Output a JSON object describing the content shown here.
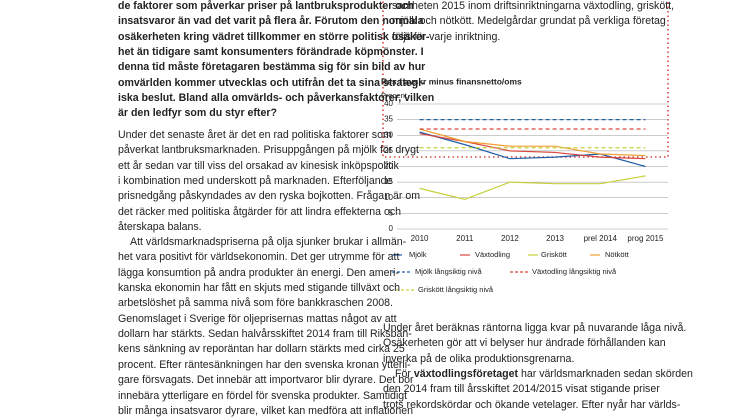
{
  "left_column": {
    "intro": [
      "de faktorer som påverkar priser på lantbruksprodukter och",
      "insatsvaror än vad det varit på flera år. Förutom den normala",
      "osäkerheten kring vädret tillkommer en större politisk osäker-",
      "het än tidigare samt konsumenters förändrade köpmönster. I",
      "denna tid måste företagaren bestämma sig för sin bild av hur",
      "omvärlden kommer utvecklas och utifrån det ta sina strategi-",
      "iska beslut. Bland alla omvärlds- och påverkansfaktorer, vilken",
      "är den ledfyr som du styr efter?"
    ],
    "paragraphs": [
      [
        "Under det senaste året är det en rad politiska faktorer som",
        "påverkat lantbruksmarknaden. Prisuppgången på mjölk för drygt",
        "ett år sedan var till viss del orsakad av kinesisk inköpspolitik",
        "i kombination med underskott på marknaden. Efterföljande",
        "prisnedgång påskyndades av den ryska bojkotten. Frågan är om",
        "det räcker med politiska åtgärder för att lindra effekterna och",
        "återskapa balans."
      ],
      [
        "Att världsmarknadspriserna på olja sjunker brukar i allmän-",
        "het vara positivt för världsekonomin. Det ger utrymme för att",
        "lägga konsumtion på andra produkter än energi. Den ameri-",
        "kanska ekonomin har fått en skjuts med stigande tillväxt och",
        "arbetslöshet på samma nivå som före bankkraschen 2008.",
        "Genomslaget i Sverige för oljeprisernas mattas något av att",
        "dollarn har stärkts. Sedan halvårsskiftet 2014 fram till Riksban-",
        "kens sänkning av reporäntan har dollarn stärkts med cirka 25",
        "procent. Efter räntesänkningen har den svenska kronan ytterli-",
        "gare försvagats. Det innebär att importvaror blir dyrare. Det bör",
        "innebära ytterligare en fördel för svenska produkter. Samtidigt",
        "blir många insatsvaror dyrare, vilket kan medföra att inflationen"
      ]
    ]
  },
  "box": {
    "lines": [
      "samheten 2015 inom driftsinriktningarna växtodling, griskött,",
      "mjölk och nötkött. Medelgårdar grundat på verkliga företag",
      "följs för varje inriktning."
    ]
  },
  "chart": {
    "type": "line",
    "title": "Res f avskr minus finansnetto/oms",
    "y_label": "Procent",
    "categories": [
      "2010",
      "2011",
      "2012",
      "2013",
      "prel 2014",
      "prog 2015"
    ],
    "ylim": [
      0,
      40
    ],
    "yticks": [
      0,
      5,
      10,
      15,
      20,
      25,
      30,
      35,
      40
    ],
    "grid": true,
    "series": [
      {
        "name": "Mjölk",
        "color": "#1f5fa8",
        "dashed": false,
        "values": [
          31,
          27,
          22.5,
          23,
          24,
          20
        ]
      },
      {
        "name": "Växtodling",
        "color": "#d9473f",
        "dashed": false,
        "values": [
          30.5,
          28,
          25,
          24.5,
          23,
          22.5
        ]
      },
      {
        "name": "Griskött",
        "color": "#c6d13a",
        "dashed": false,
        "values": [
          13,
          9.5,
          15,
          14.5,
          14.5,
          17
        ]
      },
      {
        "name": "Nötkött",
        "color": "#f0a030",
        "dashed": false,
        "values": [
          32,
          28,
          26.5,
          26.5,
          24,
          23.5
        ]
      },
      {
        "name": "Mjölk långsiktig nivå",
        "color": "#1f5fa8",
        "dashed": true,
        "values": [
          35,
          35,
          35,
          35,
          35,
          35
        ]
      },
      {
        "name": "Växtodling långsiktig nivå",
        "color": "#d9473f",
        "dashed": true,
        "values": [
          32,
          32,
          32,
          32,
          32,
          32
        ]
      },
      {
        "name": "Griskött långsiktig nivå",
        "color": "#c6d13a",
        "dashed": true,
        "values": [
          26,
          26,
          26,
          26,
          26,
          26
        ]
      }
    ]
  },
  "right_column": {
    "paragraph_1": [
      "Under året beräknas räntorna ligga kvar på nuvarande låga nivå.",
      "Osäkerheten gör att vi belyser hur ändrade förhållanden kan",
      "inverka på de olika produktionsgrenarna."
    ],
    "paragraph_2": {
      "first_pre": "För ",
      "first_bold": "växtodlingsföretaget",
      "first_post": " har världsmarknaden sedan skörden",
      "lines": [
        "den 2014 fram till årsskiftet 2014/2015 visat stigande priser",
        "trots rekordskördar och ökande vetelager. Efter nyår har världs-"
      ]
    }
  }
}
